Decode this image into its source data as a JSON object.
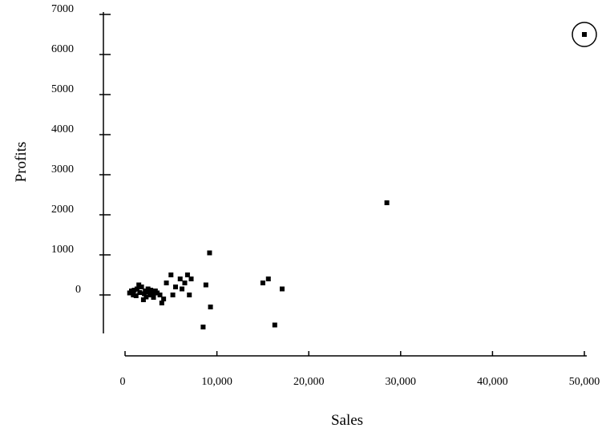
{
  "chart_data": {
    "type": "scatter",
    "title": "",
    "xlabel": "Sales",
    "ylabel": "Profits",
    "xlim": [
      0,
      50000
    ],
    "ylim": [
      -900,
      7000
    ],
    "x_ticks": [
      0,
      10000,
      20000,
      30000,
      40000,
      50000
    ],
    "x_tick_labels": [
      "0",
      "10,000",
      "20,000",
      "30,000",
      "40,000",
      "50,000"
    ],
    "y_ticks": [
      0,
      1000,
      2000,
      3000,
      4000,
      5000,
      6000,
      7000
    ],
    "y_tick_labels": [
      "0",
      "1000",
      "2000",
      "3000",
      "4000",
      "5000",
      "6000",
      "7000"
    ],
    "grid": false,
    "highlighted_point": {
      "x": 50000,
      "y": 6500
    },
    "points": [
      {
        "x": 500,
        "y": 50
      },
      {
        "x": 700,
        "y": 100
      },
      {
        "x": 900,
        "y": 0
      },
      {
        "x": 1000,
        "y": 120
      },
      {
        "x": 1200,
        "y": -20
      },
      {
        "x": 1300,
        "y": 150
      },
      {
        "x": 1500,
        "y": 250
      },
      {
        "x": 1600,
        "y": 60
      },
      {
        "x": 1800,
        "y": 200
      },
      {
        "x": 2000,
        "y": -120
      },
      {
        "x": 2100,
        "y": 30
      },
      {
        "x": 2200,
        "y": 100
      },
      {
        "x": 2300,
        "y": -50
      },
      {
        "x": 2400,
        "y": 80
      },
      {
        "x": 2500,
        "y": 150
      },
      {
        "x": 2700,
        "y": 0
      },
      {
        "x": 2800,
        "y": 120
      },
      {
        "x": 3000,
        "y": 60
      },
      {
        "x": 3100,
        "y": -60
      },
      {
        "x": 3300,
        "y": 100
      },
      {
        "x": 3500,
        "y": 50
      },
      {
        "x": 3800,
        "y": 0
      },
      {
        "x": 4000,
        "y": -200
      },
      {
        "x": 4200,
        "y": -100
      },
      {
        "x": 4500,
        "y": 300
      },
      {
        "x": 5000,
        "y": 500
      },
      {
        "x": 5200,
        "y": 0
      },
      {
        "x": 5500,
        "y": 200
      },
      {
        "x": 6000,
        "y": 400
      },
      {
        "x": 6200,
        "y": 150
      },
      {
        "x": 6500,
        "y": 300
      },
      {
        "x": 6800,
        "y": 500
      },
      {
        "x": 7000,
        "y": 0
      },
      {
        "x": 7200,
        "y": 400
      },
      {
        "x": 8500,
        "y": -800
      },
      {
        "x": 8800,
        "y": 250
      },
      {
        "x": 9200,
        "y": 1050
      },
      {
        "x": 9300,
        "y": -300
      },
      {
        "x": 15000,
        "y": 300
      },
      {
        "x": 15600,
        "y": 400
      },
      {
        "x": 16300,
        "y": -750
      },
      {
        "x": 17100,
        "y": 150
      },
      {
        "x": 28500,
        "y": 2300
      },
      {
        "x": 50000,
        "y": 6500
      }
    ]
  }
}
